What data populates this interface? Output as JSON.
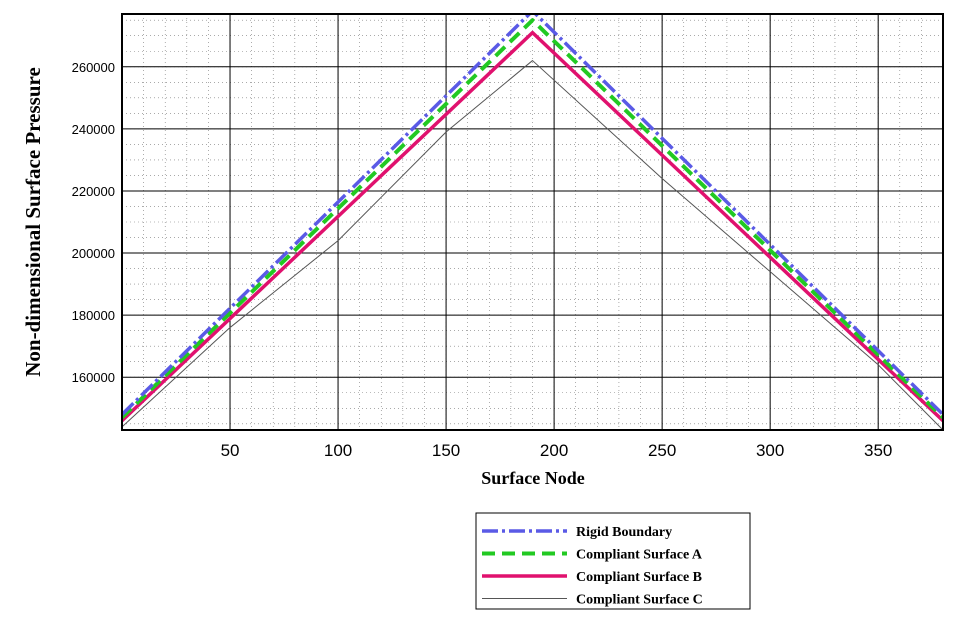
{
  "chart_data": {
    "type": "line",
    "xlabel": "Surface Node",
    "ylabel": "Non-dimensional Surface Pressure",
    "xlim": [
      0,
      380
    ],
    "ylim": [
      143000,
      277000
    ],
    "x_ticks": [
      50,
      100,
      150,
      200,
      250,
      300,
      350
    ],
    "y_ticks": [
      160000,
      180000,
      200000,
      220000,
      240000,
      260000
    ],
    "grid": true,
    "legend_position": "bottom-center",
    "series": [
      {
        "name": "Rigid Boundary",
        "color": "#5a5ae6",
        "style": "dash-dot",
        "x": [
          0,
          190,
          380
        ],
        "y": [
          148000,
          278000,
          148000
        ]
      },
      {
        "name": "Compliant Surface A",
        "color": "#22c922",
        "style": "dashed",
        "x": [
          0,
          190,
          380
        ],
        "y": [
          147000,
          275000,
          147000
        ]
      },
      {
        "name": "Compliant Surface B",
        "color": "#e0116e",
        "style": "solid-thick",
        "x": [
          0,
          190,
          380
        ],
        "y": [
          146000,
          271000,
          146000
        ]
      },
      {
        "name": "Compliant Surface C",
        "color": "#555555",
        "style": "solid-thin",
        "x": [
          0,
          50,
          100,
          150,
          190,
          250,
          300,
          350,
          380
        ],
        "y": [
          144000,
          176000,
          204000,
          239000,
          262000,
          224000,
          194000,
          164000,
          143000
        ]
      }
    ]
  }
}
